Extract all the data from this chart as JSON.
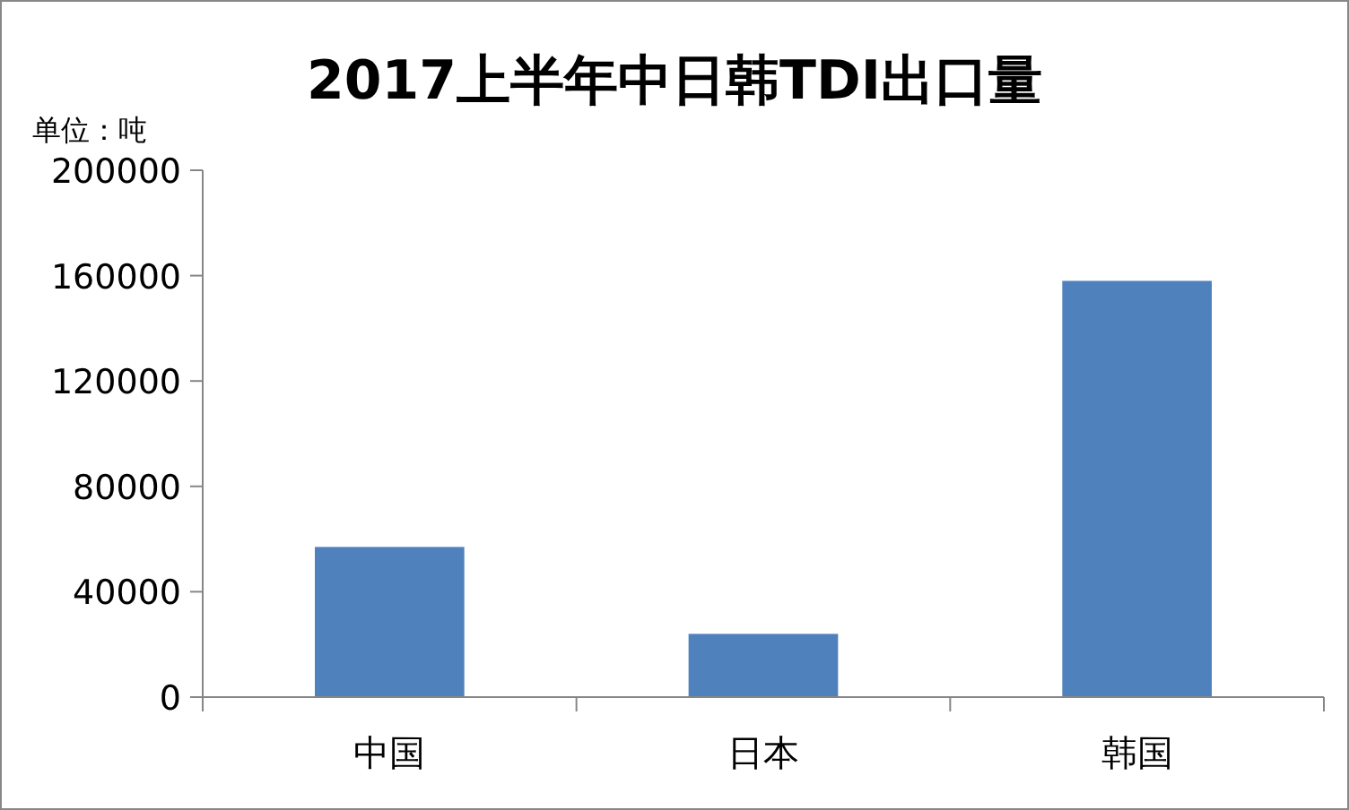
{
  "chart_data": {
    "type": "bar",
    "title": "2017上半年中日韩TDI出口量",
    "ylabel": "单位：吨",
    "categories": [
      "中国",
      "日本",
      "韩国"
    ],
    "values": [
      57000,
      24000,
      158000
    ],
    "color": "#4f81bd",
    "ylim": [
      0,
      200000
    ],
    "yticks": [
      0,
      40000,
      80000,
      120000,
      160000,
      200000
    ],
    "grid": false
  }
}
